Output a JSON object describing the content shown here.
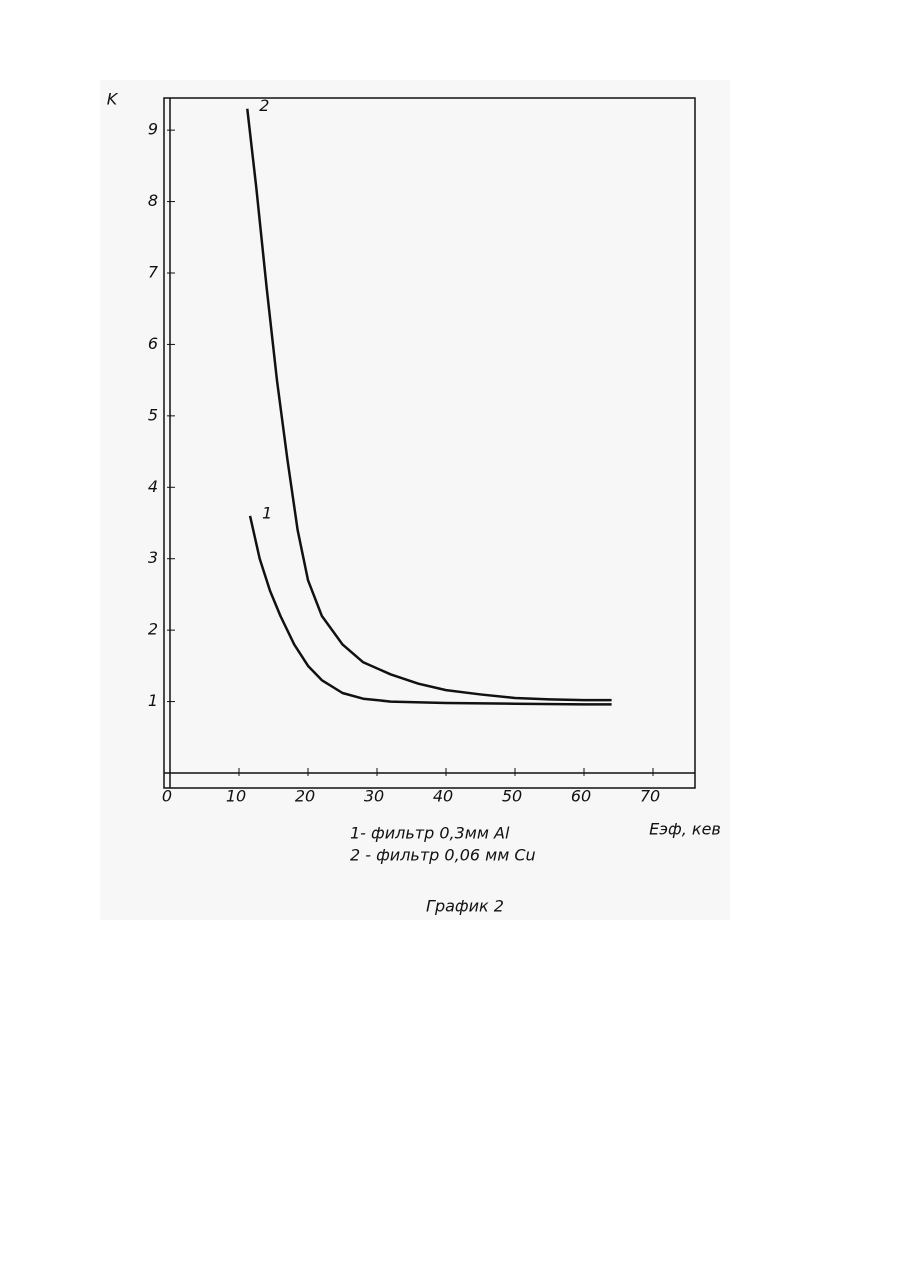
{
  "chart_data": {
    "type": "line",
    "title": "График 2",
    "ylabel": "K",
    "xlabel": "Eэф, кев",
    "xlim": [
      0,
      76
    ],
    "ylim": [
      0,
      9.45
    ],
    "xticks": [
      0,
      10,
      20,
      30,
      40,
      50,
      60,
      70
    ],
    "yticks": [
      1,
      2,
      3,
      4,
      5,
      6,
      7,
      8,
      9
    ],
    "series": [
      {
        "name": "1",
        "color": "#111111",
        "x": [
          11.6,
          13,
          14.5,
          16,
          18,
          20,
          22,
          25,
          28,
          32,
          40,
          50,
          60,
          64
        ],
        "values": [
          3.6,
          3.0,
          2.55,
          2.2,
          1.8,
          1.5,
          1.3,
          1.12,
          1.04,
          1.0,
          0.98,
          0.97,
          0.96,
          0.96
        ]
      },
      {
        "name": "2",
        "color": "#111111",
        "x": [
          11.2,
          12.5,
          14,
          15.5,
          17,
          18.5,
          20,
          22,
          25,
          28,
          32,
          36,
          40,
          45,
          50,
          55,
          60,
          64
        ],
        "values": [
          9.3,
          8.2,
          6.8,
          5.5,
          4.4,
          3.4,
          2.7,
          2.2,
          1.8,
          1.55,
          1.38,
          1.25,
          1.16,
          1.1,
          1.05,
          1.03,
          1.02,
          1.02
        ]
      }
    ],
    "legend": [
      "1- фильтр  0,3мм Al",
      "2 - фильтр  0,06 мм Cu"
    ]
  }
}
